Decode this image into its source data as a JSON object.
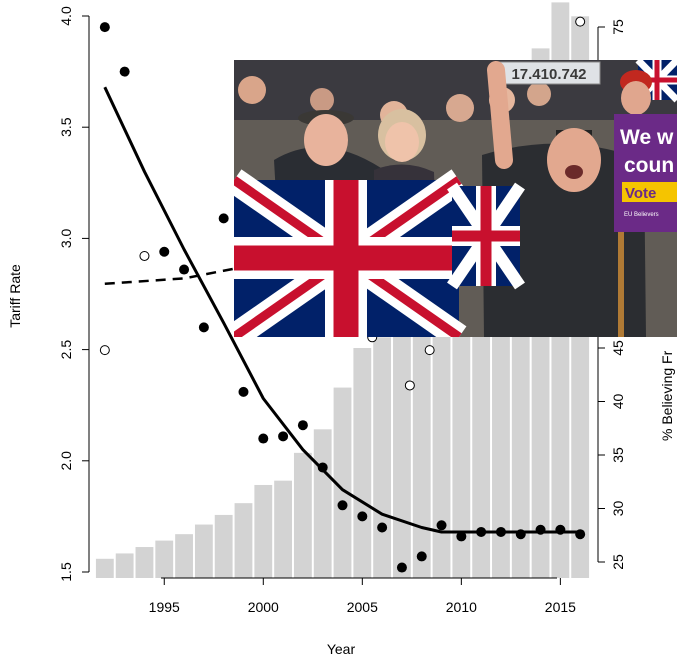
{
  "chart_data": {
    "type": "bar+scatter+line",
    "xlabel": "Year",
    "ylabel_left": "Tariff Rate",
    "ylabel_right": "% Believing Fr",
    "xlim": [
      1991.2,
      2016.9
    ],
    "ylim_left": [
      1.5,
      4.0
    ],
    "ylim_right": [
      25,
      78
    ],
    "x_ticks": [
      1995,
      2000,
      2005,
      2010,
      2015
    ],
    "y_ticks_left": [
      "1.5",
      "2.0",
      "2.5",
      "3.0",
      "3.5",
      "4.0"
    ],
    "y_ticks_right": [
      "25",
      "30",
      "35",
      "40",
      "45",
      "75"
    ],
    "bars": {
      "axis": "right",
      "years": [
        1992,
        1993,
        1994,
        1995,
        1996,
        1997,
        1998,
        1999,
        2000,
        2001,
        2002,
        2003,
        2004,
        2005,
        2006,
        2007,
        2008,
        2009,
        2010,
        2011,
        2012,
        2013,
        2014,
        2015,
        2016
      ],
      "values": [
        25.3,
        25.8,
        26.4,
        27.0,
        27.6,
        28.5,
        29.4,
        30.5,
        32.2,
        32.6,
        35.2,
        37.4,
        41.3,
        45,
        46,
        47,
        48,
        50,
        53,
        56,
        60,
        67,
        73,
        77.3,
        76.0
      ],
      "color": "#d3d3d3"
    },
    "series": [
      {
        "name": "",
        "style": "filled points",
        "axis": "left",
        "x": [
          1992,
          1993,
          1995,
          1996,
          1997,
          1998,
          1999,
          2000,
          2001,
          2002,
          2003,
          2004,
          2005,
          2006,
          2007,
          2008,
          2009,
          2010,
          2011,
          2012,
          2013,
          2014,
          2015,
          2016
        ],
        "y": [
          3.95,
          3.75,
          2.94,
          2.86,
          2.6,
          3.09,
          2.31,
          2.1,
          2.11,
          2.16,
          1.97,
          1.8,
          1.75,
          1.7,
          1.52,
          1.57,
          1.71,
          1.66,
          1.68,
          1.68,
          1.67,
          1.69,
          1.69,
          1.67
        ]
      },
      {
        "name": "",
        "style": "smooth line",
        "axis": "left",
        "x": [
          1992,
          1994,
          1996,
          1998,
          2000,
          2002,
          2004,
          2006,
          2008,
          2009,
          2010,
          2012,
          2014,
          2016
        ],
        "y": [
          3.68,
          3.3,
          2.95,
          2.62,
          2.28,
          2.05,
          1.87,
          1.76,
          1.7,
          1.68,
          1.68,
          1.68,
          1.68,
          1.68
        ]
      },
      {
        "name": "",
        "style": "open points",
        "axis": "right",
        "x": [
          1992,
          1994,
          2004.5,
          2004.5,
          2005.5,
          2007.4,
          2008.4,
          2010.3,
          2011.2,
          2016
        ],
        "y": [
          44.8,
          53.6,
          48,
          47,
          46,
          41.5,
          44.8,
          48.3,
          49.9,
          75.5
        ]
      },
      {
        "name": "",
        "style": "dashed line",
        "axis": "right",
        "x": [
          1992,
          1996,
          1998.5
        ],
        "y": [
          51.0,
          51.5,
          52.4
        ],
        "x2": [
          2005,
          2006,
          2007,
          2008,
          2009
        ],
        "y2": [
          47.5,
          46.8,
          46.9,
          47.6,
          48.8
        ]
      }
    ]
  },
  "photo": {
    "sign_number": "17.410.742",
    "placard_lines": [
      "We w",
      "coun",
      "Vote"
    ],
    "placard_small": "EU Believers",
    "colors": {
      "union_blue": "#012169",
      "union_red": "#c8102e",
      "placard_purple": "#6b2a87",
      "placard_yellow": "#f5c400"
    }
  }
}
